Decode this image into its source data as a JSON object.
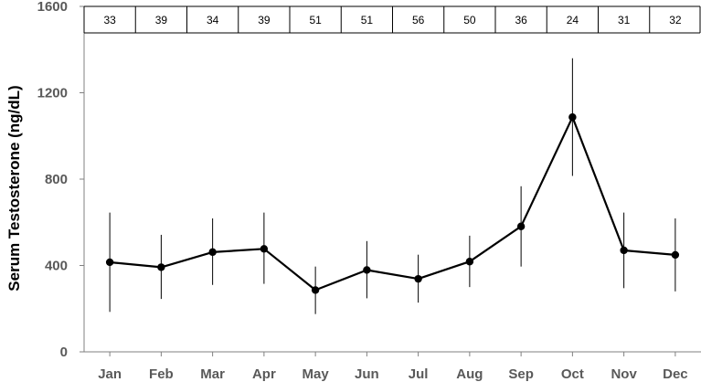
{
  "chart_data": {
    "type": "line",
    "ylabel": "Serum Testosterone (ng/dL)",
    "ylim": [
      0,
      1600
    ],
    "yticks": [
      0,
      400,
      800,
      1200,
      1600
    ],
    "grid": false,
    "categories": [
      "Jan",
      "Feb",
      "Mar",
      "Apr",
      "May",
      "Jun",
      "Jul",
      "Aug",
      "Sep",
      "Oct",
      "Nov",
      "Dec"
    ],
    "series": [
      {
        "values": [
          415,
          392,
          462,
          477,
          286,
          379,
          338,
          418,
          581,
          1087,
          470,
          449
        ],
        "error_low": [
          185,
          245,
          310,
          315,
          175,
          248,
          228,
          300,
          395,
          815,
          295,
          280
        ],
        "error_high": [
          645,
          542,
          618,
          645,
          395,
          513,
          450,
          538,
          767,
          1360,
          645,
          618
        ]
      }
    ],
    "sample_sizes": [
      "33",
      "39",
      "34",
      "39",
      "51",
      "51",
      "56",
      "50",
      "36",
      "24",
      "31",
      "32"
    ],
    "colors": {
      "line": "#000000",
      "axis": "#808080",
      "label": "#595959"
    }
  }
}
